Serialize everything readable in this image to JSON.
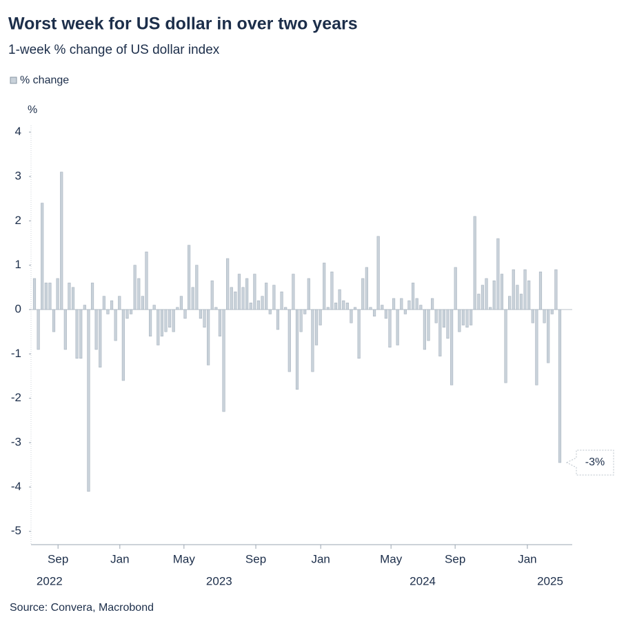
{
  "chart_data": {
    "type": "bar",
    "title": "Worst week for US dollar in over two years",
    "subtitle": "1-week % change of US dollar index",
    "y_axis_label": "%",
    "source": "Source: Convera, Macrobond",
    "annotation": "-3%",
    "categories": [
      null,
      null,
      null,
      null,
      null,
      null,
      null,
      null,
      null,
      null,
      null,
      null,
      null,
      null,
      null,
      null,
      null,
      null,
      null,
      null,
      null,
      null,
      null,
      null,
      null,
      null,
      null,
      null,
      null,
      null,
      null,
      null,
      null,
      null,
      null,
      null,
      null,
      null,
      null,
      null,
      null,
      null,
      null,
      null,
      null,
      null,
      null,
      null,
      null,
      null,
      null,
      null,
      null,
      null,
      null,
      null,
      null,
      null,
      null,
      null,
      null,
      null,
      null,
      null,
      null,
      null,
      null,
      null,
      null,
      null,
      null,
      null,
      null,
      null,
      null,
      null,
      null,
      null,
      null,
      null,
      null,
      null,
      null,
      null,
      null,
      null,
      null,
      null,
      null,
      null,
      null,
      null,
      null,
      null,
      null,
      null,
      null,
      null,
      null,
      null,
      null,
      null,
      null,
      null,
      null,
      null,
      null,
      null,
      null,
      null,
      null,
      null,
      null,
      null,
      null,
      null,
      null,
      null,
      null,
      null,
      null,
      null,
      null,
      null,
      null,
      null,
      null,
      null,
      null,
      null,
      null,
      null,
      null,
      null,
      null,
      null,
      null
    ],
    "series": [
      {
        "name": "% change",
        "color": "#c9d2da",
        "values": [
          0.7,
          -0.9,
          2.4,
          0.6,
          0.6,
          -0.5,
          0.7,
          3.1,
          -0.9,
          0.6,
          0.5,
          -1.1,
          -1.1,
          0.1,
          -4.1,
          0.6,
          -0.9,
          -1.3,
          0.3,
          -0.1,
          0.2,
          -0.7,
          0.3,
          -1.6,
          -0.2,
          -0.1,
          1.0,
          0.7,
          0.3,
          1.3,
          -0.6,
          0.1,
          -0.8,
          -0.6,
          -0.5,
          -0.4,
          -0.5,
          0.05,
          0.3,
          -0.2,
          1.45,
          0.5,
          1.0,
          -0.2,
          -0.4,
          -1.25,
          0.65,
          0.05,
          -0.6,
          -2.3,
          1.15,
          0.5,
          0.4,
          0.8,
          0.5,
          0.7,
          0.15,
          0.8,
          0.2,
          0.3,
          0.6,
          -0.1,
          0.55,
          -0.45,
          0.4,
          0.05,
          -1.4,
          0.8,
          -1.8,
          -0.5,
          -0.1,
          0.7,
          -1.4,
          -0.8,
          -0.35,
          1.05,
          0.05,
          0.85,
          0.15,
          0.45,
          0.2,
          0.15,
          -0.3,
          0.05,
          -1.1,
          0.7,
          0.95,
          0.05,
          -0.15,
          1.65,
          0.1,
          -0.2,
          -0.85,
          0.25,
          -0.8,
          0.25,
          -0.1,
          0.2,
          0.6,
          0.25,
          0.1,
          -0.9,
          -0.7,
          0.25,
          -0.3,
          -1.05,
          -0.4,
          -0.65,
          -1.7,
          0.95,
          -0.5,
          -0.35,
          -0.4,
          -0.35,
          2.1,
          0.35,
          0.55,
          0.7,
          0.05,
          0.65,
          1.6,
          0.8,
          -1.65,
          0.3,
          0.9,
          0.55,
          0.35,
          0.9,
          0.65,
          -0.3,
          -1.7,
          0.85,
          -0.3,
          -1.2,
          -0.1,
          0.9,
          -3.45
        ]
      }
    ],
    "ylim": [
      -5.3,
      4.15
    ],
    "yticks": [
      -5,
      -4,
      -3,
      -2,
      -1,
      0,
      1,
      2,
      3,
      4
    ],
    "xticks": [
      {
        "value": 6.1,
        "label": "Sep"
      },
      {
        "value": 22.1,
        "label": "Jan"
      },
      {
        "value": 38.7,
        "label": "May"
      },
      {
        "value": 57.3,
        "label": "Sep"
      },
      {
        "value": 74.1,
        "label": "Jan"
      },
      {
        "value": 92.3,
        "label": "May"
      },
      {
        "value": 108.9,
        "label": "Sep"
      },
      {
        "value": 127.6,
        "label": "Jan"
      }
    ],
    "year_labels": [
      {
        "value": 3.9,
        "label": "2022"
      },
      {
        "value": 47.8,
        "label": "2023"
      },
      {
        "value": 100.5,
        "label": "2024"
      },
      {
        "value": 133.5,
        "label": "2025"
      }
    ],
    "grid": false,
    "legend": "top-left"
  }
}
